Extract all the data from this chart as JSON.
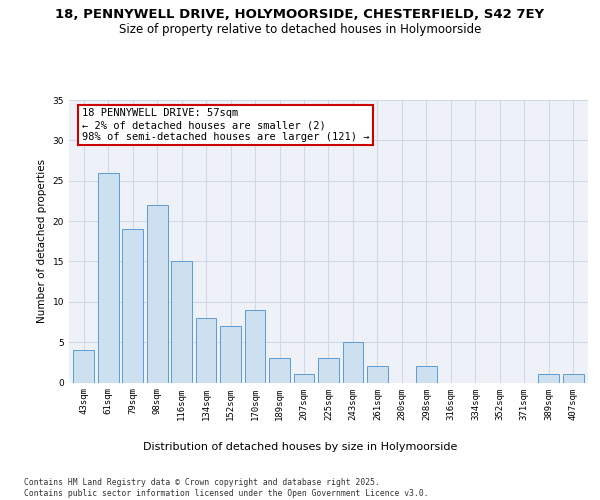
{
  "title1": "18, PENNYWELL DRIVE, HOLYMOORSIDE, CHESTERFIELD, S42 7EY",
  "title2": "Size of property relative to detached houses in Holymoorside",
  "xlabel": "Distribution of detached houses by size in Holymoorside",
  "ylabel": "Number of detached properties",
  "categories": [
    "43sqm",
    "61sqm",
    "79sqm",
    "98sqm",
    "116sqm",
    "134sqm",
    "152sqm",
    "170sqm",
    "189sqm",
    "207sqm",
    "225sqm",
    "243sqm",
    "261sqm",
    "280sqm",
    "298sqm",
    "316sqm",
    "334sqm",
    "352sqm",
    "371sqm",
    "389sqm",
    "407sqm"
  ],
  "values": [
    4,
    26,
    19,
    22,
    15,
    8,
    7,
    9,
    3,
    1,
    3,
    5,
    2,
    0,
    2,
    0,
    0,
    0,
    0,
    1,
    1
  ],
  "bar_color": "#cce0f0",
  "bar_edge_color": "#5b9bd5",
  "annotation_box_text": "18 PENNYWELL DRIVE: 57sqm\n← 2% of detached houses are smaller (2)\n98% of semi-detached houses are larger (121) →",
  "annotation_box_color": "#ffffff",
  "annotation_box_edge_color": "#cc0000",
  "ylim": [
    0,
    35
  ],
  "yticks": [
    0,
    5,
    10,
    15,
    20,
    25,
    30,
    35
  ],
  "grid_color": "#d0d8e8",
  "bg_color": "#eef2f8",
  "footnote": "Contains HM Land Registry data © Crown copyright and database right 2025.\nContains public sector information licensed under the Open Government Licence v3.0.",
  "title1_fontsize": 9.5,
  "title2_fontsize": 8.5,
  "xlabel_fontsize": 8,
  "ylabel_fontsize": 7.5,
  "tick_fontsize": 6.5,
  "annot_fontsize": 7.5,
  "footnote_fontsize": 5.8
}
